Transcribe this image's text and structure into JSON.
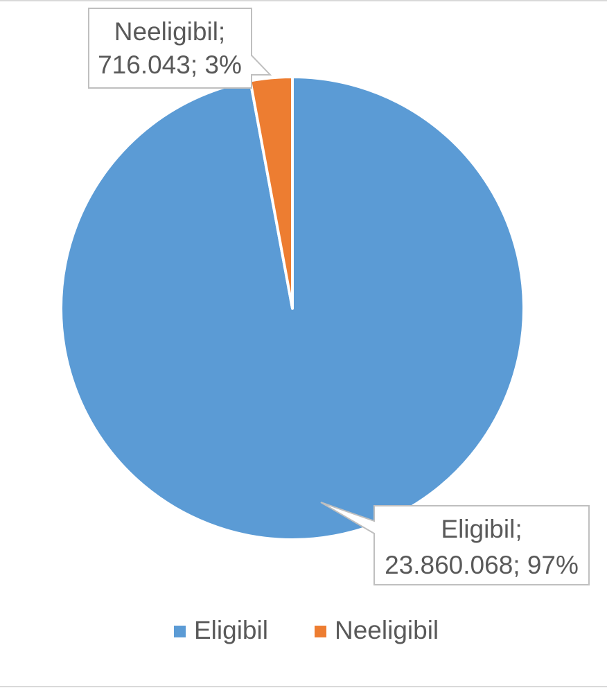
{
  "chart_data": {
    "type": "pie",
    "categories": [
      "Eligibil",
      "Neeligibil"
    ],
    "values": [
      23860068,
      716043
    ],
    "percentages": [
      97,
      3
    ],
    "colors": [
      "#5b9bd5",
      "#ed7d31"
    ],
    "start_angle_deg": 0,
    "direction": "clockwise",
    "data_labels": [
      {
        "line1": "Eligibil;",
        "line2": "23.860.068; 97%"
      },
      {
        "line1": "Neeligibil;",
        "line2": "716.043; 3%"
      }
    ],
    "legend_position": "bottom",
    "legend": [
      {
        "label": "Eligibil",
        "color": "#5b9bd5"
      },
      {
        "label": "Neeligibil",
        "color": "#ed7d31"
      }
    ]
  }
}
